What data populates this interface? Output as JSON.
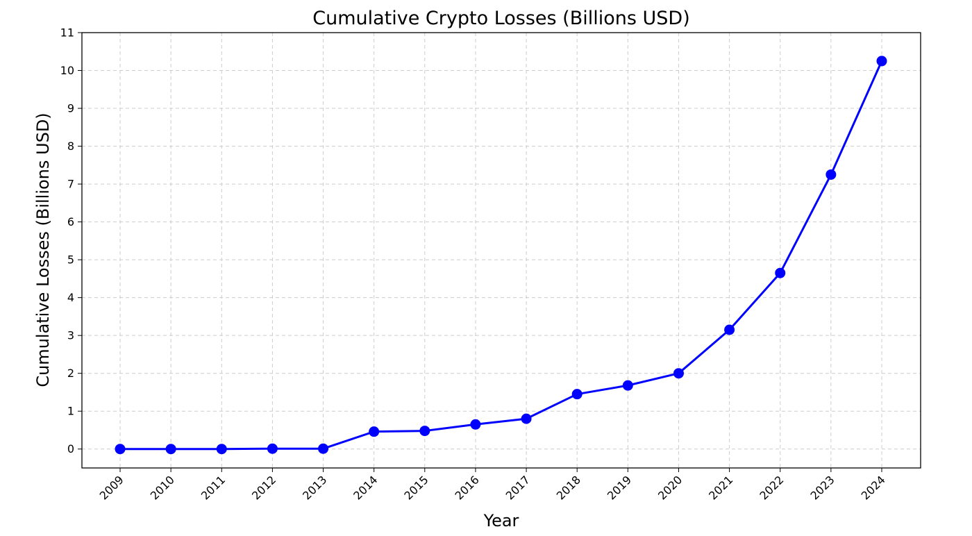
{
  "chart_data": {
    "type": "line",
    "title": "Cumulative Crypto Losses (Billions USD)",
    "xlabel": "Year",
    "ylabel": "Cumulative Losses (Billions USD)",
    "x": [
      "2009",
      "2010",
      "2011",
      "2012",
      "2013",
      "2014",
      "2015",
      "2016",
      "2017",
      "2018",
      "2019",
      "2020",
      "2021",
      "2022",
      "2023",
      "2024"
    ],
    "series": [
      {
        "values": [
          0.0,
          0.0,
          0.0,
          0.01,
          0.01,
          0.46,
          0.48,
          0.65,
          0.8,
          1.45,
          1.68,
          2.0,
          3.15,
          4.65,
          7.25,
          10.25
        ],
        "color": "#0000ff",
        "marker": "circle"
      }
    ],
    "ylim": [
      -0.5,
      11
    ],
    "yticks": [
      0,
      1,
      2,
      3,
      4,
      5,
      6,
      7,
      8,
      9,
      10,
      11
    ],
    "grid": true,
    "grid_style": "dashed",
    "xtick_rotation": -45
  }
}
